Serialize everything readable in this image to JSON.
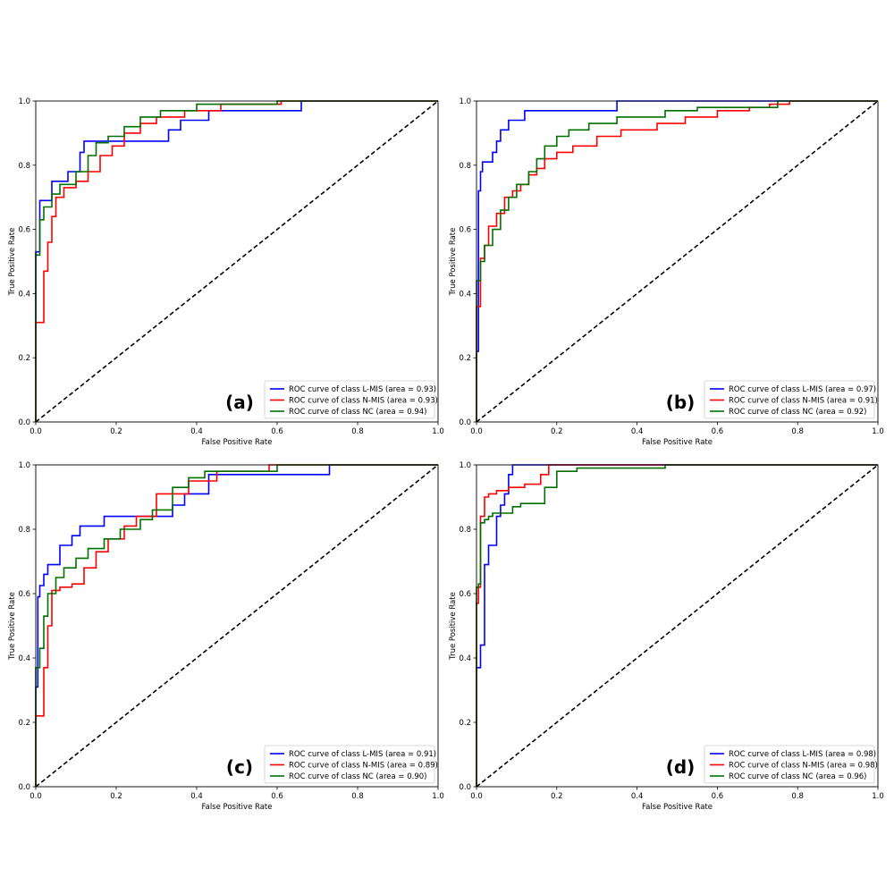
{
  "chart_data": [
    {
      "type": "line",
      "panel_label": "(a)",
      "xlabel": "False Positive Rate",
      "ylabel": "True Positive Rate",
      "xlim": [
        0,
        1
      ],
      "ylim": [
        0,
        1
      ],
      "xticks": [
        "0.0",
        "0.2",
        "0.4",
        "0.6",
        "0.8",
        "1.0"
      ],
      "yticks": [
        "0.0",
        "0.2",
        "0.4",
        "0.6",
        "0.8",
        "1.0"
      ],
      "grid": false,
      "legend_position": "bottom-right",
      "series": [
        {
          "name": "ROC curve of class L-MIS (area = 0.93)",
          "color": "#0000ff",
          "x": [
            0,
            0,
            0.01,
            0.01,
            0.04,
            0.04,
            0.08,
            0.08,
            0.11,
            0.11,
            0.12,
            0.12,
            0.2,
            0.2,
            0.33,
            0.33,
            0.36,
            0.36,
            0.43,
            0.43,
            0.66,
            0.66,
            1.0
          ],
          "y": [
            0,
            0.53,
            0.53,
            0.69,
            0.69,
            0.75,
            0.75,
            0.78,
            0.78,
            0.84,
            0.84,
            0.875,
            0.875,
            0.875,
            0.875,
            0.91,
            0.91,
            0.94,
            0.94,
            0.97,
            0.97,
            1.0,
            1.0
          ]
        },
        {
          "name": "ROC curve of class N-MIS (area = 0.93)",
          "color": "#ff0000",
          "x": [
            0,
            0,
            0.02,
            0.02,
            0.03,
            0.03,
            0.04,
            0.04,
            0.05,
            0.05,
            0.07,
            0.07,
            0.1,
            0.1,
            0.13,
            0.13,
            0.16,
            0.16,
            0.19,
            0.19,
            0.22,
            0.22,
            0.26,
            0.26,
            0.3,
            0.3,
            0.37,
            0.37,
            0.46,
            0.46,
            0.61,
            0.61,
            1.0
          ],
          "y": [
            0,
            0.31,
            0.31,
            0.47,
            0.47,
            0.56,
            0.56,
            0.64,
            0.64,
            0.7,
            0.7,
            0.73,
            0.73,
            0.75,
            0.75,
            0.78,
            0.78,
            0.83,
            0.83,
            0.86,
            0.86,
            0.9,
            0.9,
            0.93,
            0.93,
            0.95,
            0.95,
            0.97,
            0.97,
            0.99,
            0.99,
            1.0,
            1.0
          ]
        },
        {
          "name": "ROC curve of class NC (area = 0.94)",
          "color": "#007000",
          "x": [
            0,
            0,
            0.01,
            0.01,
            0.02,
            0.02,
            0.04,
            0.04,
            0.06,
            0.06,
            0.1,
            0.1,
            0.13,
            0.13,
            0.15,
            0.15,
            0.18,
            0.18,
            0.22,
            0.22,
            0.26,
            0.26,
            0.31,
            0.31,
            0.4,
            0.4,
            0.6,
            0.6,
            1.0
          ],
          "y": [
            0,
            0.52,
            0.52,
            0.63,
            0.63,
            0.67,
            0.67,
            0.71,
            0.71,
            0.74,
            0.74,
            0.78,
            0.78,
            0.83,
            0.83,
            0.87,
            0.87,
            0.89,
            0.89,
            0.92,
            0.92,
            0.95,
            0.95,
            0.97,
            0.97,
            0.99,
            0.99,
            1.0,
            1.0
          ]
        }
      ]
    },
    {
      "type": "line",
      "panel_label": "(b)",
      "xlabel": "False Positive Rate",
      "ylabel": "True Positive Rate",
      "xlim": [
        0,
        1
      ],
      "ylim": [
        0,
        1
      ],
      "xticks": [
        "0.0",
        "0.2",
        "0.4",
        "0.6",
        "0.8",
        "1.0"
      ],
      "yticks": [
        "0.0",
        "0.2",
        "0.4",
        "0.6",
        "0.8",
        "1.0"
      ],
      "grid": false,
      "legend_position": "bottom-right",
      "series": [
        {
          "name": "ROC curve of class L-MIS (area = 0.97)",
          "color": "#0000ff",
          "x": [
            0,
            0,
            0.005,
            0.005,
            0.01,
            0.01,
            0.015,
            0.015,
            0.04,
            0.04,
            0.05,
            0.05,
            0.06,
            0.06,
            0.08,
            0.08,
            0.12,
            0.12,
            0.17,
            0.17,
            0.35,
            0.35,
            0.55,
            0.55,
            1.0
          ],
          "y": [
            0,
            0.22,
            0.22,
            0.72,
            0.72,
            0.78,
            0.78,
            0.81,
            0.81,
            0.84,
            0.84,
            0.875,
            0.875,
            0.91,
            0.91,
            0.94,
            0.94,
            0.97,
            0.97,
            0.97,
            0.97,
            1.0,
            1.0,
            1.0,
            1.0
          ]
        },
        {
          "name": "ROC curve of class N-MIS (area = 0.91)",
          "color": "#ff0000",
          "x": [
            0,
            0,
            0.01,
            0.01,
            0.02,
            0.02,
            0.03,
            0.03,
            0.05,
            0.05,
            0.07,
            0.07,
            0.09,
            0.09,
            0.11,
            0.11,
            0.13,
            0.13,
            0.15,
            0.15,
            0.17,
            0.17,
            0.2,
            0.2,
            0.24,
            0.24,
            0.3,
            0.3,
            0.36,
            0.36,
            0.45,
            0.45,
            0.52,
            0.52,
            0.6,
            0.6,
            0.68,
            0.68,
            0.73,
            0.73,
            0.78,
            0.78,
            1.0
          ],
          "y": [
            0,
            0.36,
            0.36,
            0.51,
            0.51,
            0.55,
            0.55,
            0.61,
            0.61,
            0.65,
            0.65,
            0.7,
            0.7,
            0.72,
            0.72,
            0.74,
            0.74,
            0.77,
            0.77,
            0.79,
            0.79,
            0.82,
            0.82,
            0.84,
            0.84,
            0.86,
            0.86,
            0.89,
            0.89,
            0.91,
            0.91,
            0.93,
            0.93,
            0.95,
            0.95,
            0.97,
            0.97,
            0.98,
            0.98,
            0.99,
            0.99,
            1.0,
            1.0
          ]
        },
        {
          "name": "ROC curve of class NC (area = 0.92)",
          "color": "#007000",
          "x": [
            0,
            0,
            0.01,
            0.01,
            0.02,
            0.02,
            0.04,
            0.04,
            0.06,
            0.06,
            0.08,
            0.08,
            0.1,
            0.1,
            0.13,
            0.13,
            0.15,
            0.15,
            0.17,
            0.17,
            0.2,
            0.2,
            0.23,
            0.23,
            0.28,
            0.28,
            0.35,
            0.35,
            0.47,
            0.47,
            0.55,
            0.55,
            0.75,
            0.75,
            1.0
          ],
          "y": [
            0,
            0.44,
            0.44,
            0.5,
            0.5,
            0.55,
            0.55,
            0.6,
            0.6,
            0.66,
            0.66,
            0.7,
            0.7,
            0.74,
            0.74,
            0.78,
            0.78,
            0.82,
            0.82,
            0.86,
            0.86,
            0.89,
            0.89,
            0.91,
            0.91,
            0.93,
            0.93,
            0.95,
            0.95,
            0.97,
            0.97,
            0.98,
            0.98,
            1.0,
            1.0
          ]
        }
      ]
    },
    {
      "type": "line",
      "panel_label": "(c)",
      "xlabel": "False Positive Rate",
      "ylabel": "True Positive Rate",
      "xlim": [
        0,
        1
      ],
      "ylim": [
        0,
        1
      ],
      "xticks": [
        "0.0",
        "0.2",
        "0.4",
        "0.6",
        "0.8",
        "1.0"
      ],
      "yticks": [
        "0.0",
        "0.2",
        "0.4",
        "0.6",
        "0.8",
        "1.0"
      ],
      "grid": false,
      "legend_position": "bottom-right",
      "series": [
        {
          "name": "ROC curve of class L-MIS (area = 0.91)",
          "color": "#0000ff",
          "x": [
            0,
            0,
            0.005,
            0.005,
            0.01,
            0.01,
            0.02,
            0.02,
            0.03,
            0.03,
            0.06,
            0.06,
            0.09,
            0.09,
            0.11,
            0.11,
            0.17,
            0.17,
            0.25,
            0.25,
            0.34,
            0.34,
            0.37,
            0.37,
            0.43,
            0.43,
            0.73,
            0.73,
            1.0
          ],
          "y": [
            0,
            0.31,
            0.31,
            0.59,
            0.59,
            0.625,
            0.625,
            0.66,
            0.66,
            0.69,
            0.69,
            0.75,
            0.75,
            0.78,
            0.78,
            0.81,
            0.81,
            0.84,
            0.84,
            0.84,
            0.84,
            0.875,
            0.875,
            0.91,
            0.91,
            0.97,
            0.97,
            1.0,
            1.0
          ]
        },
        {
          "name": "ROC curve of class N-MIS (area = 0.89)",
          "color": "#ff0000",
          "x": [
            0,
            0,
            0.02,
            0.02,
            0.03,
            0.03,
            0.04,
            0.04,
            0.06,
            0.06,
            0.09,
            0.09,
            0.12,
            0.12,
            0.15,
            0.15,
            0.18,
            0.18,
            0.22,
            0.22,
            0.25,
            0.25,
            0.3,
            0.3,
            0.38,
            0.38,
            0.45,
            0.45,
            0.58,
            0.58,
            1.0
          ],
          "y": [
            0,
            0.22,
            0.22,
            0.37,
            0.37,
            0.5,
            0.5,
            0.61,
            0.61,
            0.62,
            0.62,
            0.63,
            0.63,
            0.68,
            0.68,
            0.73,
            0.73,
            0.77,
            0.77,
            0.81,
            0.81,
            0.84,
            0.84,
            0.91,
            0.91,
            0.95,
            0.95,
            0.98,
            0.98,
            1.0,
            1.0
          ]
        },
        {
          "name": "ROC curve of class NC (area = 0.90)",
          "color": "#007000",
          "x": [
            0,
            0,
            0.01,
            0.01,
            0.02,
            0.02,
            0.03,
            0.03,
            0.05,
            0.05,
            0.07,
            0.07,
            0.1,
            0.1,
            0.13,
            0.13,
            0.17,
            0.17,
            0.21,
            0.21,
            0.26,
            0.26,
            0.29,
            0.29,
            0.34,
            0.34,
            0.38,
            0.38,
            0.42,
            0.42,
            0.6,
            0.6,
            1.0
          ],
          "y": [
            0,
            0.37,
            0.37,
            0.43,
            0.43,
            0.53,
            0.53,
            0.6,
            0.6,
            0.65,
            0.65,
            0.68,
            0.68,
            0.71,
            0.71,
            0.74,
            0.74,
            0.77,
            0.77,
            0.8,
            0.8,
            0.83,
            0.83,
            0.86,
            0.86,
            0.93,
            0.93,
            0.96,
            0.96,
            0.98,
            0.98,
            1.0,
            1.0
          ]
        }
      ]
    },
    {
      "type": "line",
      "panel_label": "(d)",
      "xlabel": "False Positive Rate",
      "ylabel": "True Positive Rate",
      "xlim": [
        0,
        1
      ],
      "ylim": [
        0,
        1
      ],
      "xticks": [
        "0.0",
        "0.2",
        "0.4",
        "0.6",
        "0.8",
        "1.0"
      ],
      "yticks": [
        "0.0",
        "0.2",
        "0.4",
        "0.6",
        "0.8",
        "1.0"
      ],
      "grid": false,
      "legend_position": "bottom-right",
      "series": [
        {
          "name": "ROC curve of class L-MIS (area = 0.98)",
          "color": "#0000ff",
          "x": [
            0,
            0,
            0.01,
            0.01,
            0.02,
            0.02,
            0.03,
            0.03,
            0.05,
            0.05,
            0.06,
            0.06,
            0.07,
            0.07,
            0.08,
            0.08,
            0.09,
            0.09,
            0.21,
            0.21,
            1.0
          ],
          "y": [
            0,
            0.37,
            0.37,
            0.44,
            0.44,
            0.69,
            0.69,
            0.75,
            0.75,
            0.84,
            0.84,
            0.875,
            0.875,
            0.91,
            0.91,
            0.97,
            0.97,
            1.0,
            1.0,
            1.0,
            1.0
          ],
          "note": ""
        },
        {
          "name": "ROC curve of class N-MIS (area = 0.98)",
          "color": "#ff0000",
          "x": [
            0,
            0,
            0.005,
            0.005,
            0.01,
            0.01,
            0.02,
            0.02,
            0.03,
            0.03,
            0.05,
            0.05,
            0.08,
            0.08,
            0.12,
            0.12,
            0.16,
            0.16,
            0.18,
            0.18,
            0.47,
            0.47,
            1.0
          ],
          "y": [
            0,
            0.57,
            0.57,
            0.62,
            0.62,
            0.84,
            0.84,
            0.9,
            0.9,
            0.91,
            0.91,
            0.92,
            0.92,
            0.93,
            0.93,
            0.94,
            0.94,
            0.97,
            0.97,
            1.0,
            1.0,
            1.0,
            1.0
          ]
        },
        {
          "name": "ROC curve of class NC (area = 0.96)",
          "color": "#007000",
          "x": [
            0,
            0,
            0.005,
            0.005,
            0.01,
            0.01,
            0.02,
            0.02,
            0.03,
            0.03,
            0.04,
            0.04,
            0.05,
            0.05,
            0.09,
            0.09,
            0.11,
            0.11,
            0.17,
            0.17,
            0.2,
            0.2,
            0.25,
            0.25,
            0.47,
            0.47,
            1.0
          ],
          "y": [
            0,
            0.62,
            0.62,
            0.63,
            0.63,
            0.82,
            0.82,
            0.83,
            0.83,
            0.84,
            0.84,
            0.85,
            0.85,
            0.85,
            0.85,
            0.87,
            0.87,
            0.88,
            0.88,
            0.93,
            0.93,
            0.98,
            0.98,
            0.99,
            0.99,
            1.0,
            1.0
          ]
        }
      ]
    }
  ]
}
